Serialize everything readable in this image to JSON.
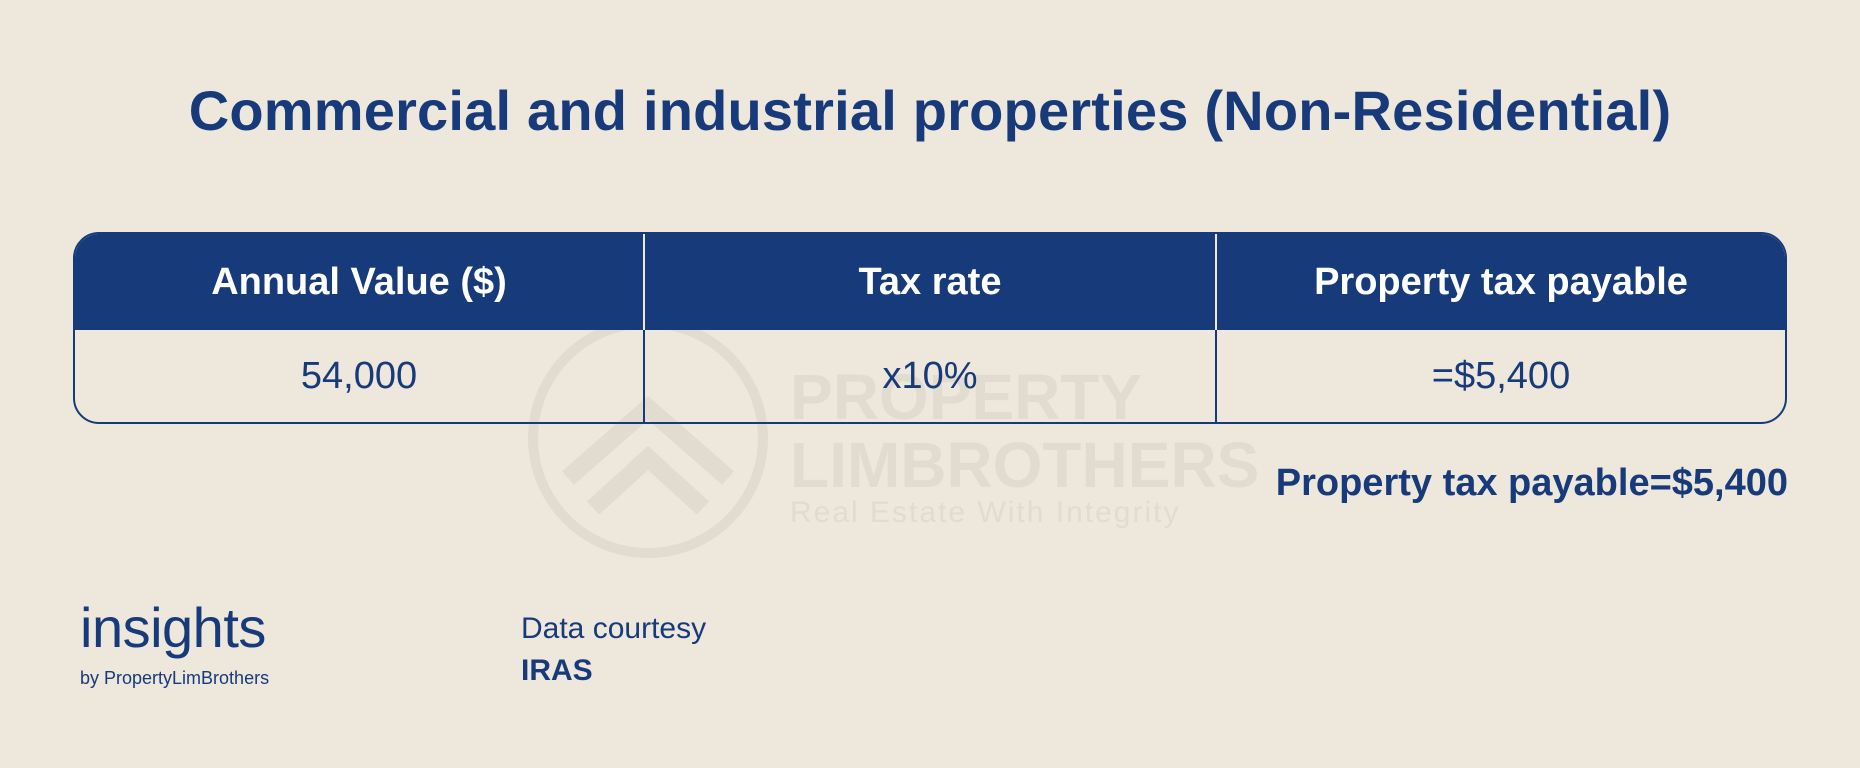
{
  "title": "Commercial and industrial properties (Non-Residential)",
  "watermark": {
    "line1": "PROPERTY",
    "line2": "LIMBROTHERS",
    "line3": "Real Estate With Integrity"
  },
  "table": {
    "headers": [
      "Annual Value ($)",
      "Tax rate",
      "Property tax payable"
    ],
    "row": [
      "54,000",
      "x10%",
      "=$5,400"
    ]
  },
  "summary": "Property tax payable=$5,400",
  "brand": {
    "name": "insights",
    "byline": "by PropertyLimBrothers"
  },
  "credit": {
    "label": "Data courtesy",
    "source": "IRAS"
  },
  "colors": {
    "background": "#EEE7DC",
    "primary": "#163A7A",
    "header_text": "#FFFFFF"
  }
}
